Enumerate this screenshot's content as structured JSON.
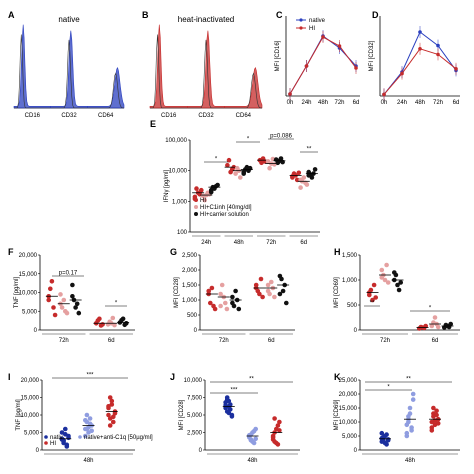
{
  "chart_data": [
    {
      "id": "A",
      "type": "histogram",
      "title": "native",
      "color": "#2a3fbf",
      "tick_labels": [
        "CD16",
        "CD32",
        "CD64"
      ]
    },
    {
      "id": "B",
      "type": "histogram",
      "title": "heat-inactivated",
      "color": "#c62b2b",
      "tick_labels": [
        "CD16",
        "CD32",
        "CD64"
      ]
    },
    {
      "id": "C",
      "type": "line",
      "ylabel": "MFI [CD16]",
      "x": [
        "0h",
        "24h",
        "48h",
        "72h",
        "6d"
      ],
      "ylim": [
        0,
        8
      ],
      "series": [
        {
          "name": "native",
          "color": "#2a3fbf",
          "values": [
            0.2,
            3.0,
            6.0,
            4.8,
            3.0
          ]
        },
        {
          "name": "HI",
          "color": "#c62b2b",
          "values": [
            0.2,
            3.0,
            5.9,
            5.0,
            2.8
          ]
        }
      ]
    },
    {
      "id": "D",
      "type": "line",
      "ylabel": "MFI [CD32]",
      "x": [
        "0h",
        "24h",
        "48h",
        "72h",
        "6d"
      ],
      "ylim": [
        0,
        10
      ],
      "series": [
        {
          "name": "native",
          "color": "#2a3fbf",
          "values": [
            0.2,
            3.0,
            8.0,
            6.3,
            3.2
          ]
        },
        {
          "name": "HI",
          "color": "#c62b2b",
          "values": [
            0.2,
            2.8,
            5.9,
            5.2,
            3.4
          ]
        }
      ]
    },
    {
      "id": "E",
      "type": "scatter",
      "ylabel": "IFNγ [pg/ml]",
      "yscale": "log",
      "ytick_labels": [
        "100",
        "1,000",
        "10,000",
        "100,000"
      ],
      "categories": [
        "24h",
        "48h",
        "72h",
        "6d"
      ],
      "legend": [
        "HI",
        "HI+C1inh [40mg/dl]",
        "HI+carrier solution"
      ],
      "series_colors": [
        "#c62b2b",
        "#e5a0a0",
        "#111111"
      ],
      "groups": [
        [
          [
            1400,
            2600,
            1900,
            1700,
            2300,
            1200
          ],
          [
            1500,
            1100,
            1600,
            1900,
            1700
          ],
          [
            2300,
            2900,
            2600,
            3100,
            3400,
            2000
          ]
        ],
        [
          [
            15000,
            22000,
            9000,
            11000,
            13000
          ],
          [
            8000,
            12000,
            10000,
            6000
          ],
          [
            9000,
            11000,
            13000,
            10000,
            12000,
            8000
          ]
        ],
        [
          [
            22000,
            18000,
            25000,
            20000
          ],
          [
            20000,
            12000,
            17000,
            24000,
            16000
          ],
          [
            23000,
            18000,
            21000,
            25000,
            19000
          ]
        ],
        [
          [
            6000,
            8000,
            7000,
            5000,
            8500,
            6500
          ],
          [
            2800,
            4500,
            6000,
            4000,
            3500,
            5000
          ],
          [
            9000,
            7500,
            6000,
            8000,
            11000,
            7000
          ]
        ]
      ],
      "annotations": [
        "*",
        "*",
        "p=0.086",
        "**"
      ]
    },
    {
      "id": "F",
      "type": "scatter",
      "ylabel": "TNF [pg/ml]",
      "ylim": [
        0,
        20000
      ],
      "ytick_labels": [
        "0",
        "5,000",
        "10,000",
        "15,000",
        "20,000"
      ],
      "categories": [
        "72h",
        "6d"
      ],
      "groups": [
        [
          [
            8000,
            11000,
            13000,
            6000,
            4000,
            9000
          ],
          [
            7000,
            6000,
            8000,
            5000,
            4500,
            9500
          ],
          [
            12000,
            8000,
            6000,
            7000,
            4500,
            9000
          ]
        ],
        [
          [
            1800,
            2500,
            3000,
            1200,
            1500
          ],
          [
            1500,
            2200,
            1800,
            3200,
            1300
          ],
          [
            2000,
            2600,
            3000,
            1400,
            1800
          ]
        ]
      ],
      "annotations": [
        "p=0.17",
        "*"
      ]
    },
    {
      "id": "G",
      "type": "scatter",
      "ylabel": "MFI [CD28]",
      "ylim": [
        0,
        2500
      ],
      "ytick_labels": [
        "0",
        "500",
        "1,000",
        "1,500",
        "2,000",
        "2,500"
      ],
      "categories": [
        "72h",
        "6d"
      ],
      "groups": [
        [
          [
            1200,
            900,
            1400,
            800,
            700,
            1300
          ],
          [
            800,
            1500,
            1100,
            900,
            700,
            1200
          ],
          [
            900,
            800,
            1300,
            1000,
            700,
            1100
          ]
        ],
        [
          [
            1500,
            1300,
            1200,
            1700,
            1100,
            1400
          ],
          [
            1500,
            1200,
            1600,
            1400,
            1100,
            1300
          ],
          [
            1800,
            1700,
            1300,
            1500,
            900,
            1200
          ]
        ]
      ]
    },
    {
      "id": "H",
      "type": "scatter",
      "ylabel": "MFI [CD69]",
      "ylim": [
        0,
        1500
      ],
      "ytick_labels": [
        "0",
        "500",
        "1,000",
        "1,500"
      ],
      "categories": [
        "72h",
        "6d"
      ],
      "groups": [
        [
          [
            700,
            800,
            600,
            900,
            650,
            750
          ],
          [
            1200,
            1100,
            1000,
            1300,
            950,
            1050
          ],
          [
            1000,
            1100,
            900,
            800,
            950,
            1150
          ]
        ],
        [
          [
            30,
            60,
            50,
            40,
            80
          ],
          [
            80,
            150,
            250,
            120,
            60
          ],
          [
            50,
            100,
            80,
            60,
            120
          ]
        ]
      ],
      "annotations": [
        "**",
        "*"
      ]
    },
    {
      "id": "I",
      "type": "scatter",
      "ylabel": "TNF [pg/ml]",
      "ylim": [
        0,
        20000
      ],
      "ytick_labels": [
        "0",
        "5,000",
        "10,000",
        "15,000",
        "20,000"
      ],
      "category": "48h",
      "legend": [
        "nativ",
        "HI",
        "native+anti-C1q [50µg/ml]"
      ],
      "groups": [
        [
          3000,
          2000,
          4500,
          1500,
          3500,
          5000,
          2500,
          6000,
          1000,
          4000,
          3200,
          2800
        ],
        [
          6000,
          8000,
          5000,
          9000,
          7000,
          4000,
          10000,
          6500,
          7500,
          5500,
          8500,
          6000
        ],
        [
          10000,
          9000,
          13000,
          8000,
          11000,
          12000,
          7000,
          14000,
          9500,
          10500,
          12500,
          15000
        ]
      ],
      "annotations": [
        "***"
      ]
    },
    {
      "id": "J",
      "type": "scatter",
      "ylabel": "MFI [CD28]",
      "ylim": [
        0,
        10000
      ],
      "ytick_labels": [
        "0",
        "2,500",
        "5,000",
        "7,500",
        "10,000"
      ],
      "category": "48h",
      "groups": [
        [
          6000,
          5500,
          7000,
          6500,
          5000,
          6800,
          7500,
          6200,
          5800,
          4800,
          6400,
          7200,
          5300
        ],
        [
          2000,
          1500,
          2500,
          1000,
          3000,
          1800,
          2200,
          1200,
          2700,
          1600,
          2100,
          1400
        ],
        [
          1500,
          2500,
          1000,
          3500,
          4000,
          2000,
          1200,
          3000,
          800,
          2800,
          1800,
          4500
        ]
      ],
      "annotations": [
        "***",
        "**"
      ]
    },
    {
      "id": "K",
      "type": "scatter",
      "ylabel": "MFI [CD69]",
      "ylim": [
        0,
        25000
      ],
      "ytick_labels": [
        "0",
        "5,000",
        "10,000",
        "15,000",
        "20,000",
        "25,000"
      ],
      "category": "48h",
      "groups": [
        [
          3000,
          4000,
          5000,
          2000,
          3500,
          6000,
          4500,
          2500,
          5500,
          3800,
          4200,
          3200
        ],
        [
          9000,
          12000,
          15000,
          7000,
          18000,
          5000,
          10000,
          13000,
          8000,
          20000,
          6000,
          11000
        ],
        [
          10000,
          12000,
          9000,
          14000,
          11000,
          8000,
          13000,
          10500,
          12500,
          9500,
          7000,
          15000
        ]
      ],
      "annotations": [
        "*",
        "**"
      ]
    }
  ]
}
